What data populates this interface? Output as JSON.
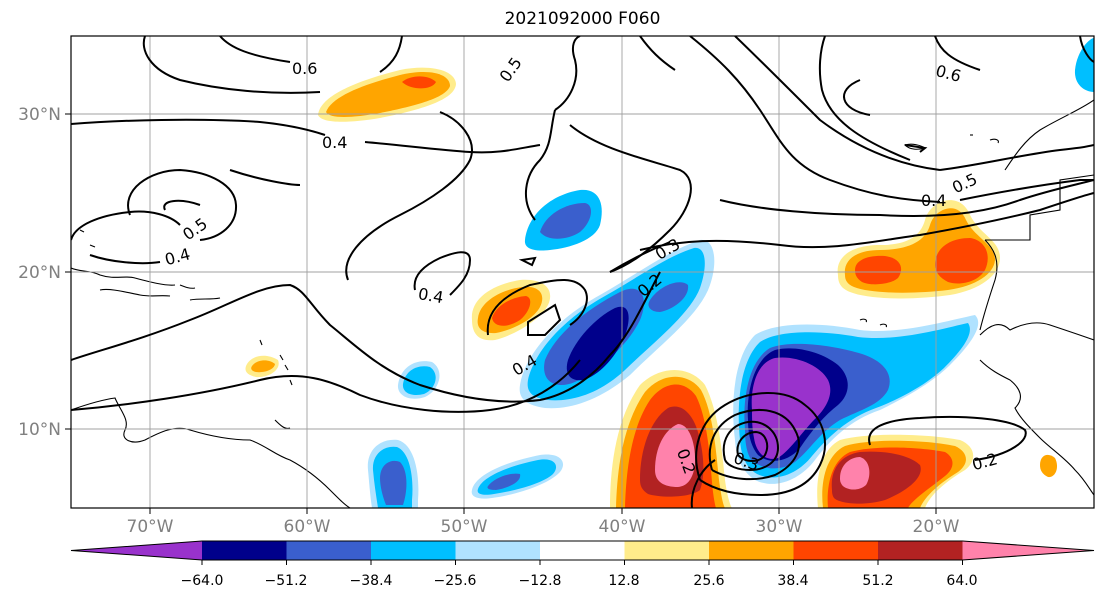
{
  "title": "2021092000 F060",
  "map": {
    "lat_labels": [
      "30°N",
      "20°N",
      "10°N"
    ],
    "lon_labels": [
      "70°W",
      "60°W",
      "50°W",
      "40°W",
      "30°W",
      "20°W"
    ],
    "contour_labels": [
      "0.6",
      "0.5",
      "0.4",
      "0.5",
      "0.4",
      "0.4",
      "0.3",
      "0.2",
      "0.4",
      "0.2",
      "0.3",
      "0.6",
      "0.5",
      "0.4",
      "0.2"
    ]
  },
  "colorbar": {
    "colors": [
      "#9932cc",
      "#00008b",
      "#3a5fcd",
      "#00bfff",
      "#b0e2ff",
      "#ffffff",
      "#ffec8b",
      "#ffa500",
      "#ff4500",
      "#b22222",
      "#ff82ab"
    ],
    "tick_labels": [
      "−64.0",
      "−51.2",
      "−38.4",
      "−25.6",
      "−12.8",
      "12.8",
      "25.6",
      "38.4",
      "51.2",
      "64.0"
    ]
  }
}
